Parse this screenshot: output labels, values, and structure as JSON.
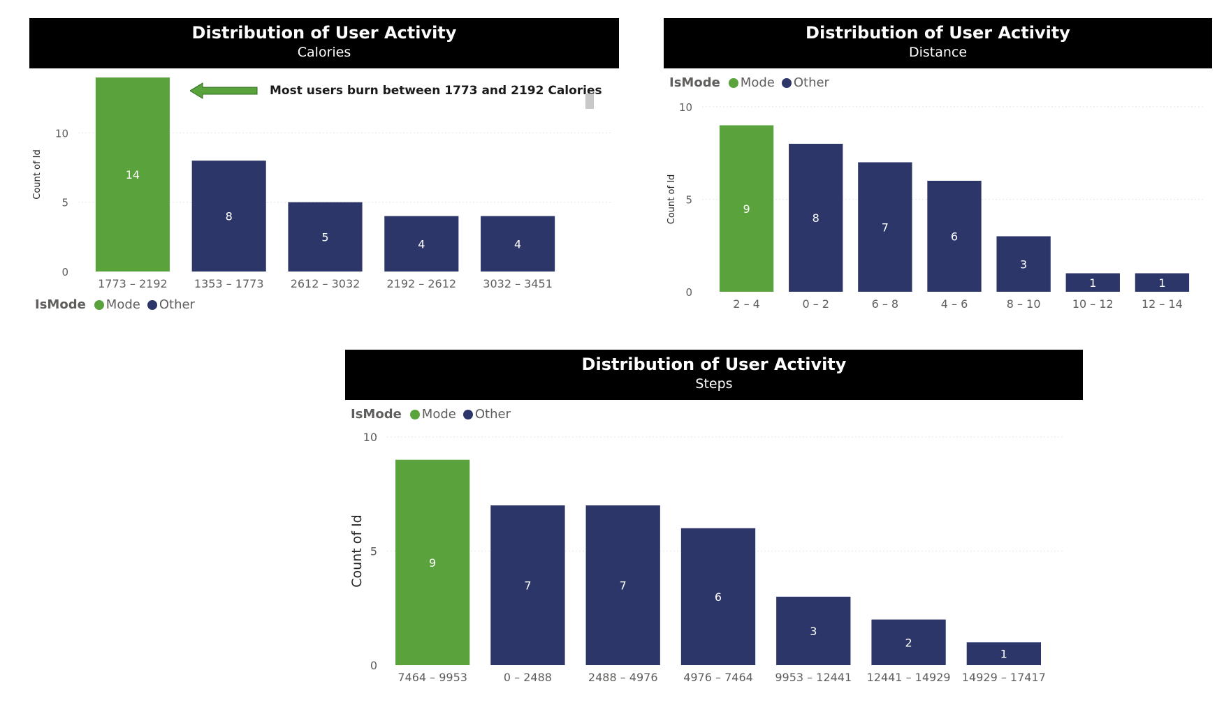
{
  "colors": {
    "mode": "#5aa33c",
    "other": "#2d3669",
    "header_bg": "#000000",
    "header_text": "#ffffff",
    "gridline": "#e6e6e6",
    "axis_text": "#605e5c",
    "label_text": "#ffffff"
  },
  "legend": {
    "title": "IsMode",
    "items": [
      {
        "label": "Mode",
        "color": "#5aa33c"
      },
      {
        "label": "Other",
        "color": "#2d3669"
      }
    ]
  },
  "panels": {
    "calories": {
      "title": "Distribution of User Activity",
      "subtitle": "Calories",
      "annotation": "Most users burn between 1773 and 2192 Calories"
    },
    "distance": {
      "title": "Distribution of User Activity",
      "subtitle": "Distance"
    },
    "steps": {
      "title": "Distribution of User Activity",
      "subtitle": "Steps"
    }
  },
  "chart_data": [
    {
      "type": "bar",
      "title": "Distribution of User Activity",
      "subtitle": "Calories",
      "xlabel": "",
      "ylabel": "Count of Id",
      "ylim": [
        0,
        14
      ],
      "yticks": [
        0,
        5,
        10
      ],
      "grid": true,
      "legend_placement": "bottom-left",
      "categories": [
        "1773 – 2192",
        "1353 – 1773",
        "2612 – 3032",
        "2192 – 2612",
        "3032 – 3451"
      ],
      "values": [
        14,
        8,
        5,
        4,
        4
      ],
      "is_mode": [
        "Mode",
        "Other",
        "Other",
        "Other",
        "Other"
      ]
    },
    {
      "type": "bar",
      "title": "Distribution of User Activity",
      "subtitle": "Distance",
      "xlabel": "",
      "ylabel": "Count of Id",
      "ylim": [
        0,
        10
      ],
      "yticks": [
        0,
        5,
        10
      ],
      "grid": true,
      "legend_placement": "top-left",
      "categories": [
        "2 – 4",
        "0 – 2",
        "6 – 8",
        "4 – 6",
        "8 – 10",
        "10 – 12",
        "12 – 14"
      ],
      "values": [
        9,
        8,
        7,
        6,
        3,
        1,
        1
      ],
      "is_mode": [
        "Mode",
        "Other",
        "Other",
        "Other",
        "Other",
        "Other",
        "Other"
      ]
    },
    {
      "type": "bar",
      "title": "Distribution of User Activity",
      "subtitle": "Steps",
      "xlabel": "",
      "ylabel": "Count of Id",
      "ylim": [
        0,
        10
      ],
      "yticks": [
        0,
        5,
        10
      ],
      "grid": true,
      "legend_placement": "top-left",
      "categories": [
        "7464 – 9953",
        "0 – 2488",
        "2488 – 4976",
        "4976 – 7464",
        "9953 – 12441",
        "12441 – 14929",
        "14929 – 17417"
      ],
      "values": [
        9,
        7,
        7,
        6,
        3,
        2,
        1
      ],
      "is_mode": [
        "Mode",
        "Other",
        "Other",
        "Other",
        "Other",
        "Other",
        "Other"
      ]
    }
  ]
}
